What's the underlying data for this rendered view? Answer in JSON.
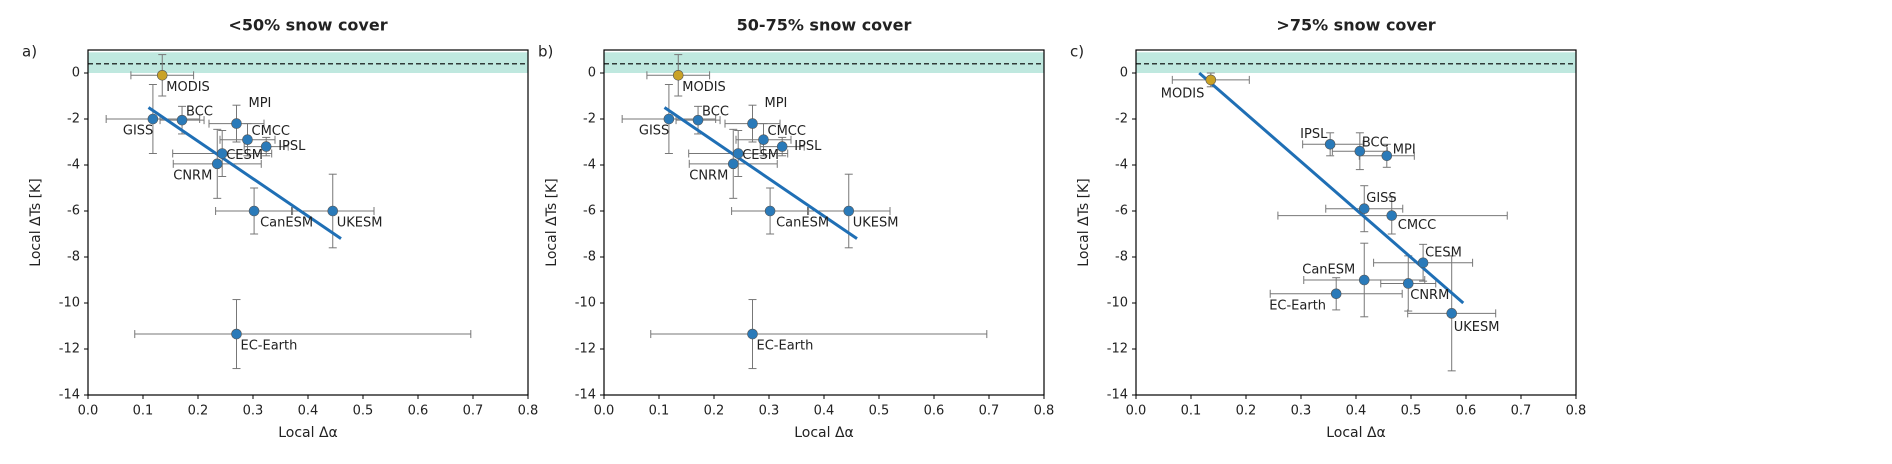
{
  "chart_data": [
    {
      "type": "scatter",
      "title": "<50% snow cover",
      "panel_label": "a)",
      "xlabel": "Local Δα",
      "ylabel": "Local ΔTs [K]",
      "xlim": [
        0,
        0.8
      ],
      "ylim": [
        -14,
        1
      ],
      "xticks": [
        {
          "value": 0,
          "label": "0.0"
        },
        0.1,
        0.2,
        0.3,
        0.4,
        0.5,
        0.6,
        0.7,
        0.8
      ],
      "yticks": [
        0,
        -2,
        -4,
        -6,
        -8,
        -10,
        -12,
        -14
      ],
      "points": {
        "labels": [
          "MODIS",
          "GISS",
          "BCC",
          "MPI",
          "CMCC",
          "IPSL",
          "CESM",
          "CNRM",
          "CanESM",
          "UKESM",
          "EC-Earth"
        ],
        "x": [
          0.135,
          0.118,
          0.171,
          0.27,
          0.29,
          0.324,
          0.244,
          0.235,
          0.302,
          0.445,
          0.27
        ],
        "y": [
          -0.1,
          -2.0,
          -2.05,
          -2.2,
          -2.9,
          -3.2,
          -3.5,
          -3.95,
          -6.0,
          -6.0,
          -11.35
        ],
        "xerr": [
          [
            0.057,
            0.057
          ],
          [
            0.085,
            0.085
          ],
          [
            0.04,
            0.04
          ],
          [
            0.05,
            0.05
          ],
          [
            0.05,
            0.05
          ],
          [
            0.04,
            0.04
          ],
          [
            0.09,
            0.09
          ],
          [
            0.08,
            0.08
          ],
          [
            0.07,
            0.07
          ],
          [
            0.075,
            0.075
          ],
          [
            0.185,
            0.426
          ]
        ],
        "yerr": [
          0.9,
          1.5,
          0.6,
          0.8,
          0.7,
          0.4,
          1.0,
          1.5,
          1.0,
          1.6,
          1.5
        ],
        "colors": [
          "#c9a227",
          "#2a7ab9",
          "#2a7ab9",
          "#2a7ab9",
          "#2a7ab9",
          "#2a7ab9",
          "#2a7ab9",
          "#2a7ab9",
          "#2a7ab9",
          "#2a7ab9",
          "#2a7ab9"
        ]
      },
      "fit": {
        "x": [
          0.11,
          0.46
        ],
        "y": [
          -1.5,
          -7.2
        ],
        "color": "#1f6fb5"
      },
      "reference": {
        "value": 0.4,
        "band": [
          0,
          0.9
        ],
        "color": "#bfe8df"
      }
    },
    {
      "type": "scatter",
      "title": "50-75% snow cover",
      "panel_label": "b)",
      "xlabel": "Local Δα",
      "ylabel": "Local ΔTs [K]",
      "xlim": [
        0,
        0.8
      ],
      "ylim": [
        -14,
        1
      ],
      "xticks": [
        {
          "value": 0,
          "label": "0.0"
        },
        0.1,
        0.2,
        0.3,
        0.4,
        0.5,
        0.6,
        0.7,
        0.8
      ],
      "yticks": [
        0,
        -2,
        -4,
        -6,
        -8,
        -10,
        -12,
        -14
      ],
      "points": {
        "labels": [
          "MODIS",
          "GISS",
          "BCC",
          "MPI",
          "CMCC",
          "IPSL",
          "CESM",
          "CNRM",
          "CanESM",
          "UKESM",
          "EC-Earth"
        ],
        "x": [
          0.135,
          0.118,
          0.171,
          0.27,
          0.29,
          0.324,
          0.244,
          0.235,
          0.302,
          0.445,
          0.27
        ],
        "y": [
          -0.1,
          -2.0,
          -2.05,
          -2.2,
          -2.9,
          -3.2,
          -3.5,
          -3.95,
          -6.0,
          -6.0,
          -11.35
        ],
        "xerr": [
          [
            0.057,
            0.057
          ],
          [
            0.085,
            0.085
          ],
          [
            0.04,
            0.04
          ],
          [
            0.05,
            0.05
          ],
          [
            0.05,
            0.05
          ],
          [
            0.04,
            0.04
          ],
          [
            0.09,
            0.09
          ],
          [
            0.08,
            0.08
          ],
          [
            0.07,
            0.07
          ],
          [
            0.075,
            0.075
          ],
          [
            0.185,
            0.426
          ]
        ],
        "yerr": [
          0.9,
          1.5,
          0.6,
          0.8,
          0.7,
          0.4,
          1.0,
          1.5,
          1.0,
          1.6,
          1.5
        ],
        "colors": [
          "#c9a227",
          "#2a7ab9",
          "#2a7ab9",
          "#2a7ab9",
          "#2a7ab9",
          "#2a7ab9",
          "#2a7ab9",
          "#2a7ab9",
          "#2a7ab9",
          "#2a7ab9",
          "#2a7ab9"
        ]
      },
      "fit": {
        "x": [
          0.11,
          0.46
        ],
        "y": [
          -1.5,
          -7.2
        ],
        "color": "#1f6fb5"
      },
      "reference": {
        "value": 0.4,
        "band": [
          0,
          0.9
        ],
        "color": "#bfe8df"
      }
    },
    {
      "type": "scatter",
      "title": ">75% snow cover",
      "panel_label": "c)",
      "xlabel": "Local Δα",
      "ylabel": "Local ΔTs [K]",
      "xlim": [
        0,
        0.8
      ],
      "ylim": [
        -14,
        1
      ],
      "xticks": [
        {
          "value": 0,
          "label": "0.0"
        },
        0.1,
        0.2,
        0.3,
        0.4,
        0.5,
        0.6,
        0.7,
        0.8
      ],
      "yticks": [
        0,
        -2,
        -4,
        -6,
        -8,
        -10,
        -12,
        -14
      ],
      "points": {
        "labels": [
          "MODIS",
          "IPSL",
          "BCC",
          "MPI",
          "GISS",
          "CMCC",
          "CESM",
          "CanESM",
          "CNRM",
          "EC-Earth",
          "UKESM"
        ],
        "x": [
          0.136,
          0.353,
          0.407,
          0.456,
          0.415,
          0.465,
          0.522,
          0.415,
          0.495,
          0.364,
          0.574
        ],
        "y": [
          -0.3,
          -3.1,
          -3.4,
          -3.6,
          -5.9,
          -6.2,
          -8.25,
          -9.0,
          -9.15,
          -9.6,
          -10.45
        ],
        "xerr": [
          [
            0.07,
            0.07
          ],
          [
            0.05,
            0.06
          ],
          [
            0.05,
            0.05
          ],
          [
            0.05,
            0.05
          ],
          [
            0.07,
            0.07
          ],
          [
            0.207,
            0.21
          ],
          [
            0.09,
            0.09
          ],
          [
            0.11,
            0.11
          ],
          [
            0.05,
            0.05
          ],
          [
            0.12,
            0.12
          ],
          [
            0.08,
            0.08
          ]
        ],
        "yerr": [
          0.3,
          0.5,
          0.8,
          0.5,
          1.0,
          0.8,
          0.8,
          1.6,
          1.2,
          0.7,
          2.5
        ],
        "colors": [
          "#c9a227",
          "#2a7ab9",
          "#2a7ab9",
          "#2a7ab9",
          "#2a7ab9",
          "#2a7ab9",
          "#2a7ab9",
          "#2a7ab9",
          "#2a7ab9",
          "#2a7ab9",
          "#2a7ab9"
        ]
      },
      "fit": {
        "x": [
          0.115,
          0.595
        ],
        "y": [
          0,
          -10.0
        ],
        "color": "#1f6fb5"
      },
      "reference": {
        "value": 0.4,
        "band": [
          0,
          0.9
        ],
        "color": "#bfe8df"
      }
    }
  ]
}
